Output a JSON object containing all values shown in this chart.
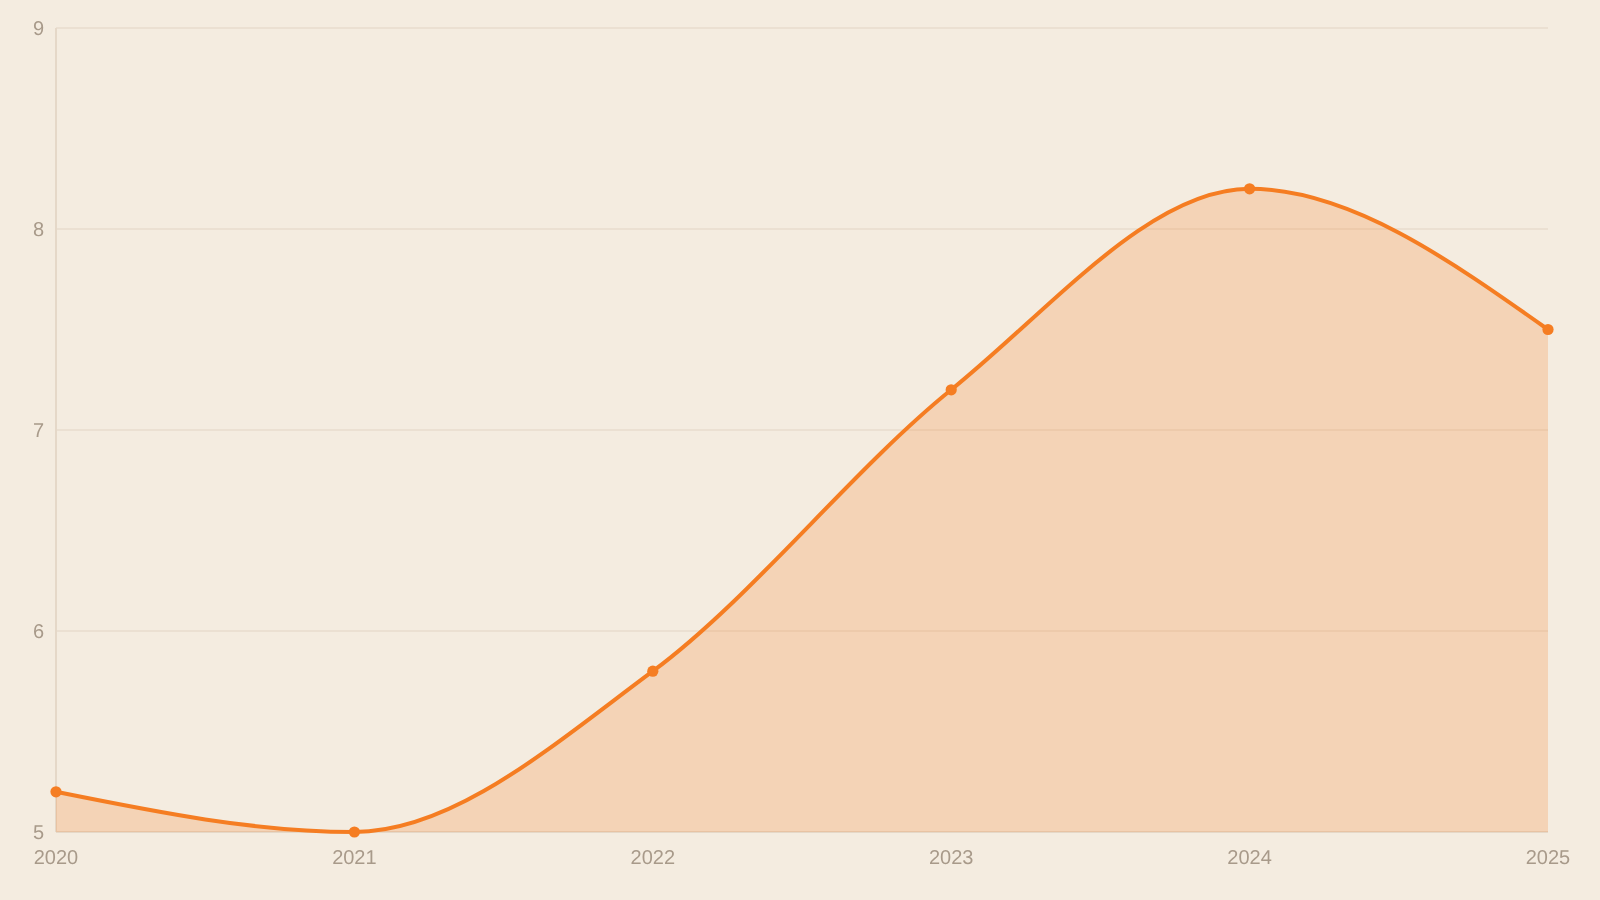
{
  "chart_data": {
    "type": "area",
    "x": [
      2020,
      2021,
      2022,
      2023,
      2024,
      2025
    ],
    "series": [
      {
        "color": "#f57d22",
        "values": [
          5.2,
          5.0,
          5.8,
          7.2,
          8.2,
          7.5
        ]
      }
    ],
    "xlim": [
      2020,
      2025
    ],
    "xticks": [
      2020,
      2021,
      2022,
      2023,
      2024,
      2025
    ],
    "ylim": [
      5,
      9
    ],
    "yticks": [
      5,
      6,
      7,
      8,
      9
    ],
    "grid": "y",
    "marker": "circle"
  }
}
